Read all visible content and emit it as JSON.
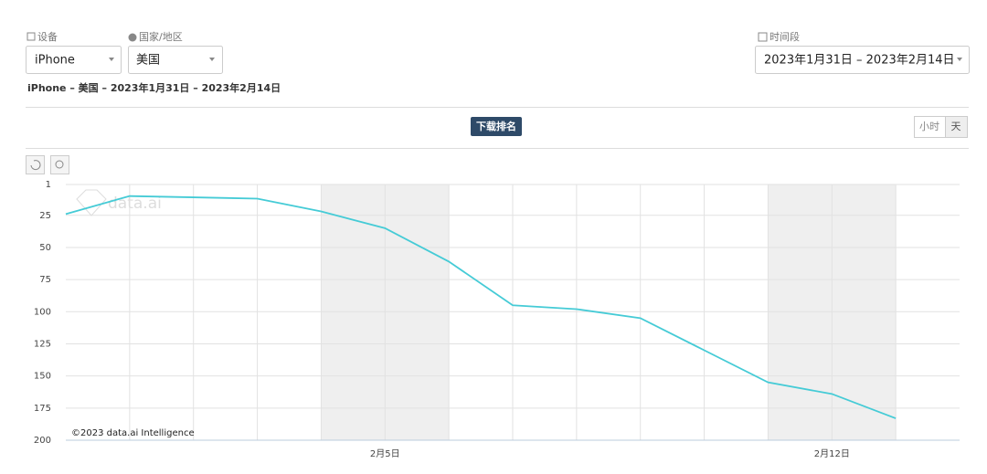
{
  "filters": {
    "device_label": "设备",
    "device": "iPhone",
    "country_label": "国家/地区",
    "country": "美国",
    "period_label": "时间段",
    "period": "2023年1月31日 – 2023年2月14日"
  },
  "summary": "iPhone – 美国 – 2023年1月31日 – 2023年2月14日",
  "chart_data": {
    "type": "line",
    "title": "下载排名",
    "toggle": [
      "小时",
      "天"
    ],
    "watermark": "data.ai",
    "credit": "©2023 data.ai Intelligence",
    "categories": [
      null,
      null,
      null,
      null,
      null,
      "2月5日",
      null,
      null,
      null,
      null,
      null,
      null,
      "2月12日",
      null,
      null
    ],
    "values": [
      24,
      10,
      11,
      12,
      22,
      35,
      61,
      95,
      98,
      105,
      130,
      155,
      164,
      183,
      null
    ],
    "color": "#45cbd6",
    "ylim": [
      1,
      200
    ],
    "y_inverted": true,
    "yticks": [
      1,
      25,
      50,
      75,
      100,
      125,
      150,
      175,
      200
    ],
    "grid": true
  }
}
